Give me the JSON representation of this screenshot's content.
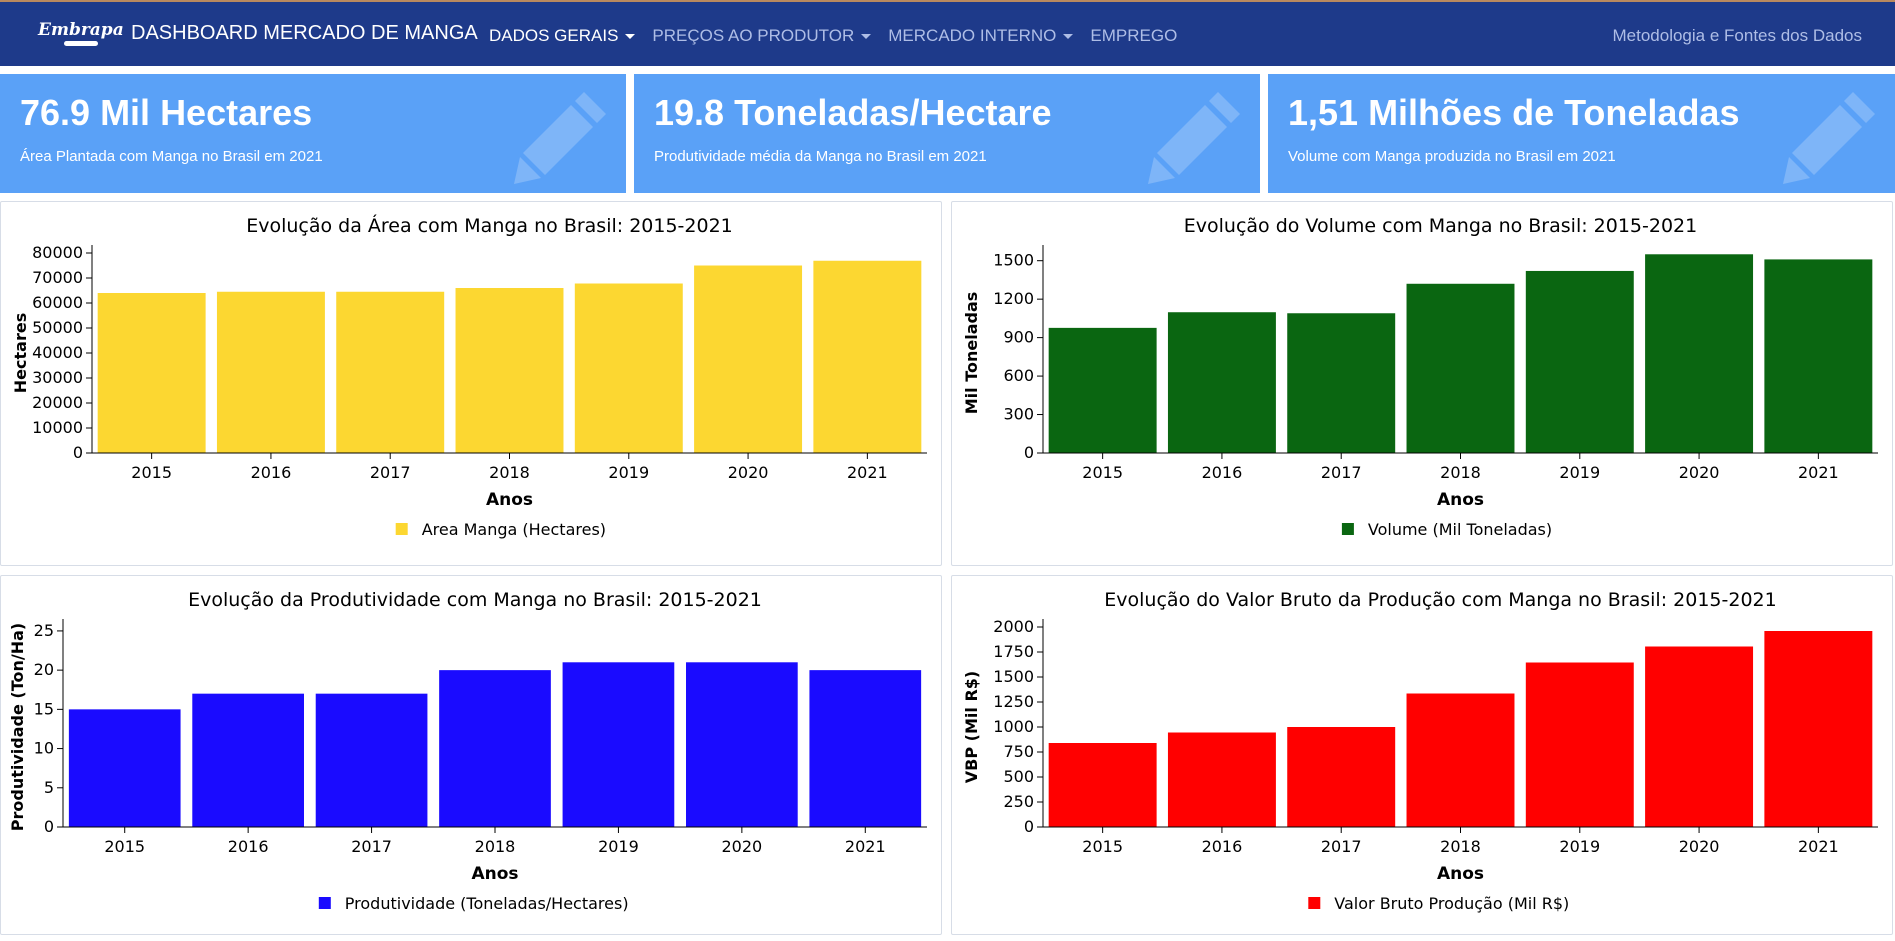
{
  "navbar": {
    "logo": "Embrapa",
    "brand": "DASHBOARD MERCADO DE MANGA",
    "menu": [
      {
        "label": "DADOS GERAIS",
        "dropdown": true,
        "active": true
      },
      {
        "label": "PREÇOS AO PRODUTOR",
        "dropdown": true,
        "active": false
      },
      {
        "label": "MERCADO INTERNO",
        "dropdown": true,
        "active": false
      },
      {
        "label": "EMPREGO",
        "dropdown": false,
        "active": false
      }
    ],
    "right_link": "Metodologia e Fontes dos Dados"
  },
  "kpis": [
    {
      "value": "76.9 Mil Hectares",
      "description": "Área Plantada com Manga no Brasil em 2021",
      "icon": "pencil-icon"
    },
    {
      "value": "19.8 Toneladas/Hectare",
      "description": "Produtividade média da Manga no Brasil em 2021",
      "icon": "pencil-icon"
    },
    {
      "value": "1,51 Milhões de Toneladas",
      "description": "Volume com Manga produzida no Brasil em 2021",
      "icon": "pencil-icon"
    }
  ],
  "colors": {
    "navbar": "#1e3a8a",
    "kpi": "#5aa1f7",
    "area": "#fcd731",
    "volume": "#0a6611",
    "produtividade": "#1a0bff",
    "vbp": "#ff0000"
  },
  "chart_data": [
    {
      "type": "bar",
      "title": "Evolução da Área com Manga no Brasil: 2015-2021",
      "categories": [
        "2015",
        "2016",
        "2017",
        "2018",
        "2019",
        "2020",
        "2021"
      ],
      "series": [
        {
          "name": "Area Manga (Hectares)",
          "values": [
            64000,
            64500,
            64500,
            66000,
            67800,
            75000,
            76900
          ]
        }
      ],
      "xlabel": "Anos",
      "ylabel": "Hectares",
      "ylim": [
        0,
        80000
      ],
      "yticks": [
        0,
        10000,
        20000,
        30000,
        40000,
        50000,
        60000,
        70000,
        80000
      ],
      "color": "#fcd731",
      "grid": false,
      "legend": "bottom"
    },
    {
      "type": "bar",
      "title": "Evolução do Volume com Manga no Brasil: 2015-2021",
      "categories": [
        "2015",
        "2016",
        "2017",
        "2018",
        "2019",
        "2020",
        "2021"
      ],
      "series": [
        {
          "name": "Volume (Mil Toneladas)",
          "values": [
            976,
            1098,
            1090,
            1320,
            1420,
            1550,
            1510
          ]
        }
      ],
      "xlabel": "Anos",
      "ylabel": "Mil Toneladas",
      "ylim": [
        0,
        1560
      ],
      "yticks": [
        0,
        300,
        600,
        900,
        1200,
        1500
      ],
      "color": "#0a6611",
      "grid": false,
      "legend": "bottom"
    },
    {
      "type": "bar",
      "title": "Evolução da Produtividade com Manga no Brasil: 2015-2021",
      "categories": [
        "2015",
        "2016",
        "2017",
        "2018",
        "2019",
        "2020",
        "2021"
      ],
      "series": [
        {
          "name": "Produtividade (Toneladas/Hectares)",
          "values": [
            15,
            17,
            17,
            20,
            21,
            21,
            20
          ]
        }
      ],
      "xlabel": "Anos",
      "ylabel": "Produtividade (Ton/Ha)",
      "ylim": [
        0,
        25.5
      ],
      "yticks": [
        0,
        5,
        10,
        15,
        20,
        25
      ],
      "color": "#1a0bff",
      "grid": false,
      "legend": "bottom"
    },
    {
      "type": "bar",
      "title": "Evolução do Valor Bruto da Produção com Manga no Brasil: 2015-2021",
      "categories": [
        "2015",
        "2016",
        "2017",
        "2018",
        "2019",
        "2020",
        "2021"
      ],
      "series": [
        {
          "name": "Valor Bruto Produção (Mil R$)",
          "values": [
            840,
            945,
            1000,
            1335,
            1645,
            1805,
            1960
          ]
        }
      ],
      "xlabel": "Anos",
      "ylabel": "VBP (Mil R$)",
      "ylim": [
        0,
        2000
      ],
      "yticks": [
        0,
        250,
        500,
        750,
        1000,
        1250,
        1500,
        1750,
        2000
      ],
      "color": "#ff0000",
      "grid": false,
      "legend": "bottom"
    }
  ]
}
